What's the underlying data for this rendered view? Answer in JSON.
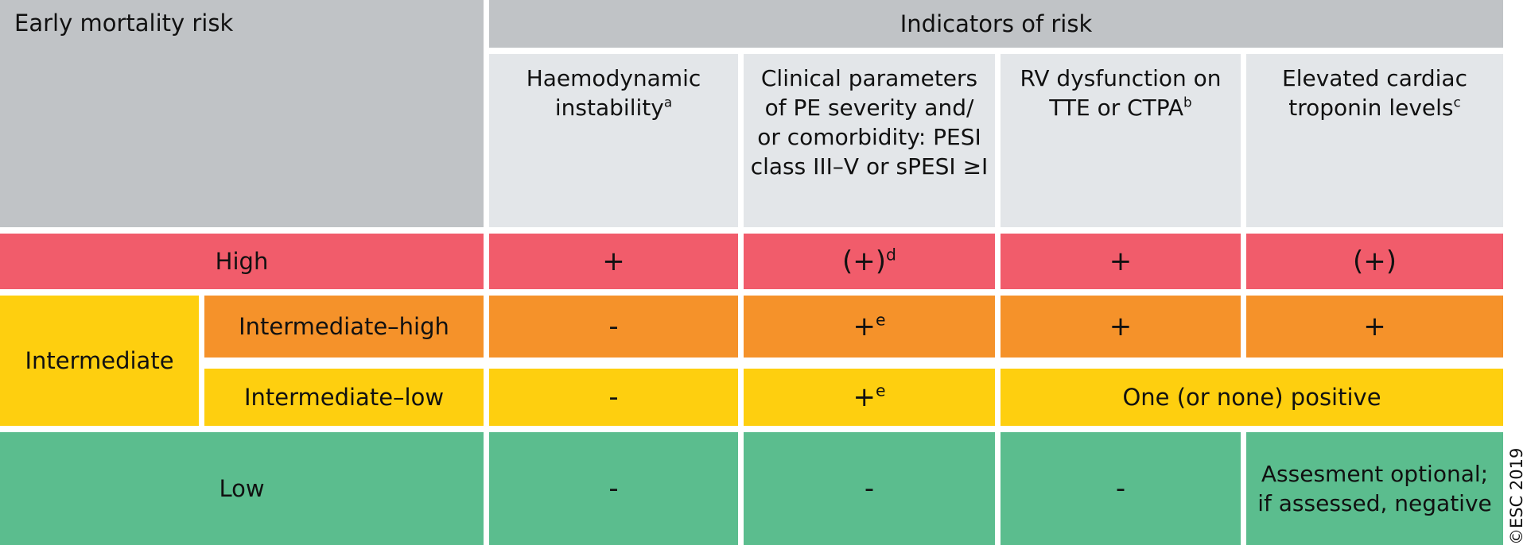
{
  "header": {
    "early_mortality_label": "Early mortality risk",
    "indicators_label": "Indicators of risk",
    "columns": [
      {
        "main": "Haemodynamic instability",
        "sup": "a"
      },
      {
        "main": "Clinical parameters of PE severity and/ or comorbidity: PESI class III–V or sPESI ≥I",
        "sup": ""
      },
      {
        "main": "RV dysfunction on TTE or CTPA",
        "sup": "b"
      },
      {
        "main": "Elevated cardiac troponin levels",
        "sup": "c"
      }
    ]
  },
  "rows": {
    "high": {
      "label": "High",
      "haemodynamic": "+",
      "clinical": "(+)",
      "clinical_sup": "d",
      "rv": "+",
      "troponin": "(+)"
    },
    "intermediate": {
      "label": "Intermediate",
      "high": {
        "label": "Intermediate–high",
        "haemodynamic": "-",
        "clinical": "+",
        "clinical_sup": "e",
        "rv": "+",
        "troponin": "+"
      },
      "low": {
        "label": "Intermediate–low",
        "haemodynamic": "-",
        "clinical": "+",
        "clinical_sup": "e",
        "rv_troponin": "One (or none) positive"
      }
    },
    "low": {
      "label": "Low",
      "haemodynamic": "-",
      "clinical": "-",
      "rv": "-",
      "troponin": "Assesment optional; if assessed, negative"
    }
  },
  "copyright": "©ESC 2019",
  "colors": {
    "header_dark": "#c0c3c6",
    "header_light": "#e3e6e9",
    "high": "#f15c6b",
    "intermediate_high": "#f5922a",
    "intermediate": "#fecf0f",
    "low": "#5bbd8e"
  }
}
